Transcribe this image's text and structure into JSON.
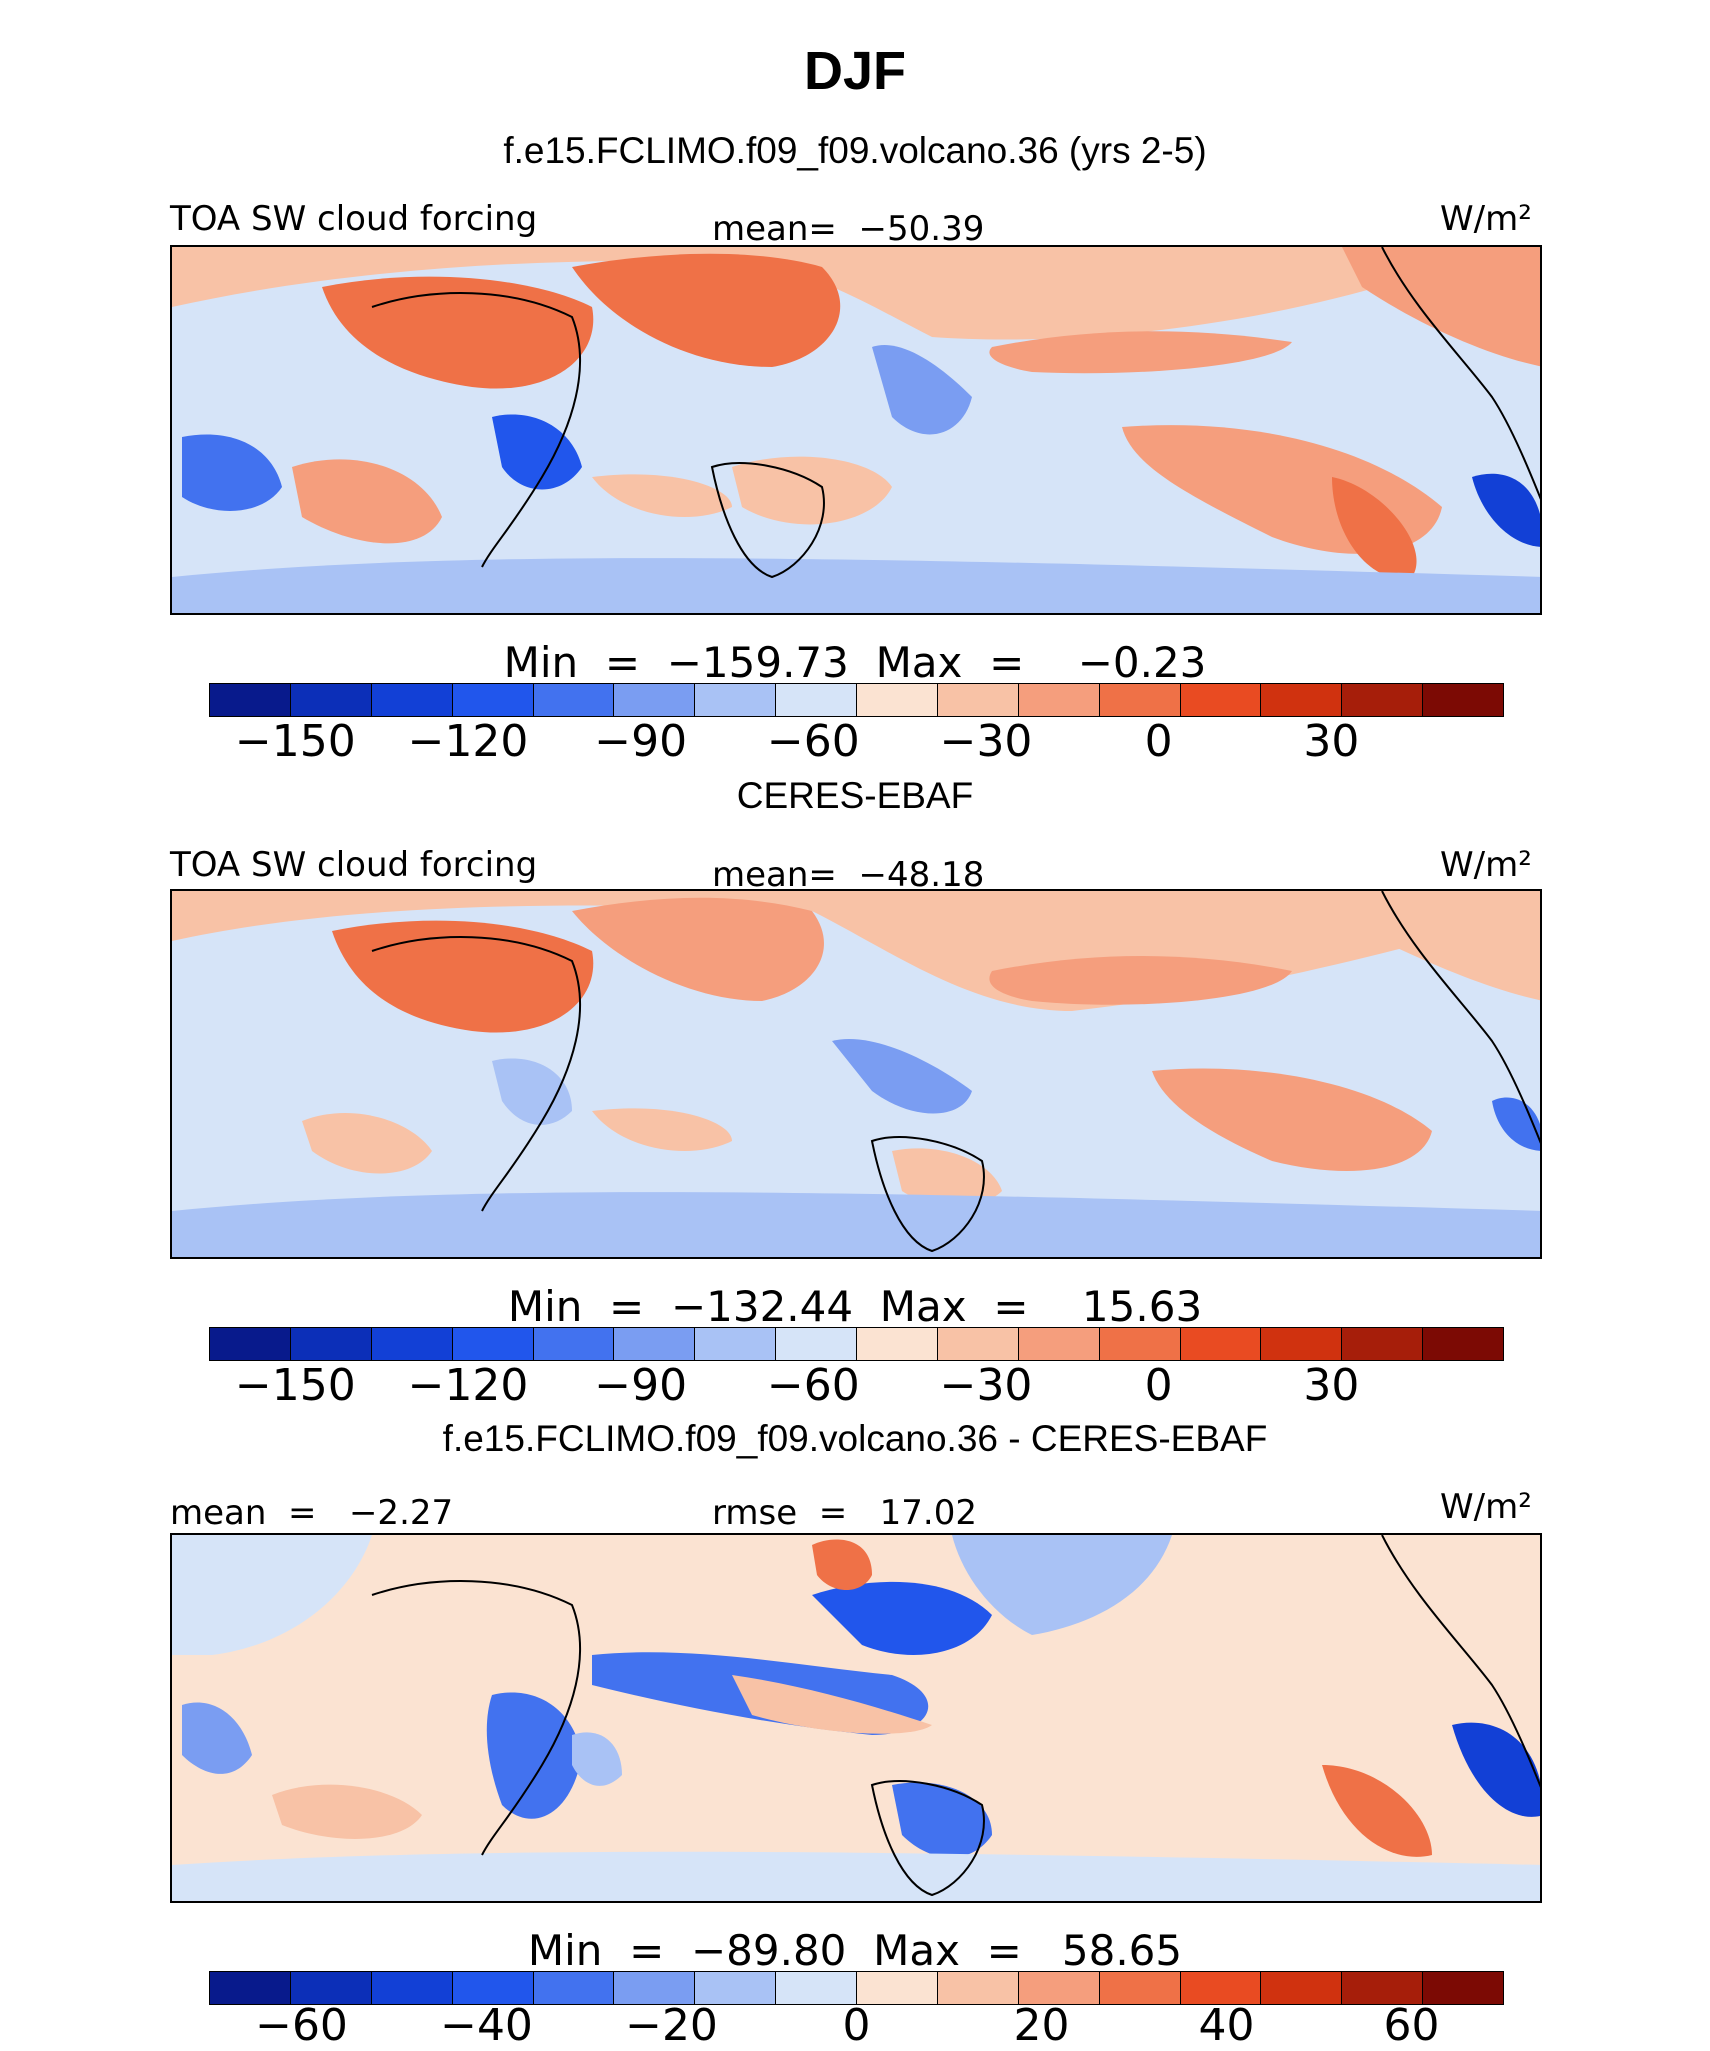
{
  "figure": {
    "season": "DJF",
    "case_title": "f.e15.FCLIMO.f09_f09.volcano.36 (yrs 2-5)"
  },
  "chart_data": [
    {
      "type": "heatmap",
      "panel": "model",
      "title": "f.e15.FCLIMO.f09_f09.volcano.36 (yrs 2-5)",
      "variable": "TOA SW cloud forcing",
      "units": "W/m²",
      "mean_label": "mean=  −50.39",
      "minmax_label": "Min  =  −159.73  Max  =    −0.23",
      "mean": -50.39,
      "min": -159.73,
      "max": -0.23,
      "colorbar_levels": [
        -165,
        -150,
        -135,
        -120,
        -105,
        -90,
        -75,
        -60,
        -45,
        -30,
        -15,
        0,
        15,
        30,
        45,
        60
      ],
      "colorbar_tick_values": [
        -150,
        -120,
        -90,
        -60,
        -30,
        0,
        30
      ],
      "colorbar_ticks": [
        "−150",
        "−120",
        "−90",
        "−60",
        "−30",
        "0",
        "30"
      ]
    },
    {
      "type": "heatmap",
      "panel": "observations",
      "title": "CERES-EBAF",
      "variable": "TOA SW cloud forcing",
      "units": "W/m²",
      "mean_label": "mean=  −48.18",
      "minmax_label": "Min  =  −132.44  Max  =    15.63",
      "mean": -48.18,
      "min": -132.44,
      "max": 15.63,
      "colorbar_levels": [
        -165,
        -150,
        -135,
        -120,
        -105,
        -90,
        -75,
        -60,
        -45,
        -30,
        -15,
        0,
        15,
        30,
        45,
        60
      ],
      "colorbar_tick_values": [
        -150,
        -120,
        -90,
        -60,
        -30,
        0,
        30
      ],
      "colorbar_ticks": [
        "−150",
        "−120",
        "−90",
        "−60",
        "−30",
        "0",
        "30"
      ]
    },
    {
      "type": "heatmap",
      "panel": "difference",
      "title": "f.e15.FCLIMO.f09_f09.volcano.36 - CERES-EBAF",
      "units": "W/m²",
      "mean_label": "mean  =   −2.27",
      "rmse_label": "rmse  =   17.02",
      "mean": -2.27,
      "rmse": 17.02,
      "minmax_label": "Min  =  −89.80  Max  =   58.65",
      "min": -89.8,
      "max": 58.65,
      "colorbar_levels": [
        -70,
        -60,
        -50,
        -40,
        -30,
        -20,
        -10,
        0,
        10,
        20,
        30,
        40,
        50,
        60,
        70
      ],
      "colorbar_tick_values": [
        -60,
        -40,
        -20,
        0,
        20,
        40,
        60
      ],
      "colorbar_ticks": [
        "−60",
        "−40",
        "−20",
        "0",
        "20",
        "40",
        "60"
      ]
    }
  ],
  "colorbar_colors": [
    "#081a8c",
    "#0c2fb8",
    "#1240d6",
    "#2156ec",
    "#4272ef",
    "#7a9df2",
    "#a9c2f5",
    "#d6e4f8",
    "#fbe3d2",
    "#f8c2a6",
    "#f59e7d",
    "#ef7147",
    "#e94b22",
    "#d0320f",
    "#a61e0a",
    "#7c0a04"
  ]
}
